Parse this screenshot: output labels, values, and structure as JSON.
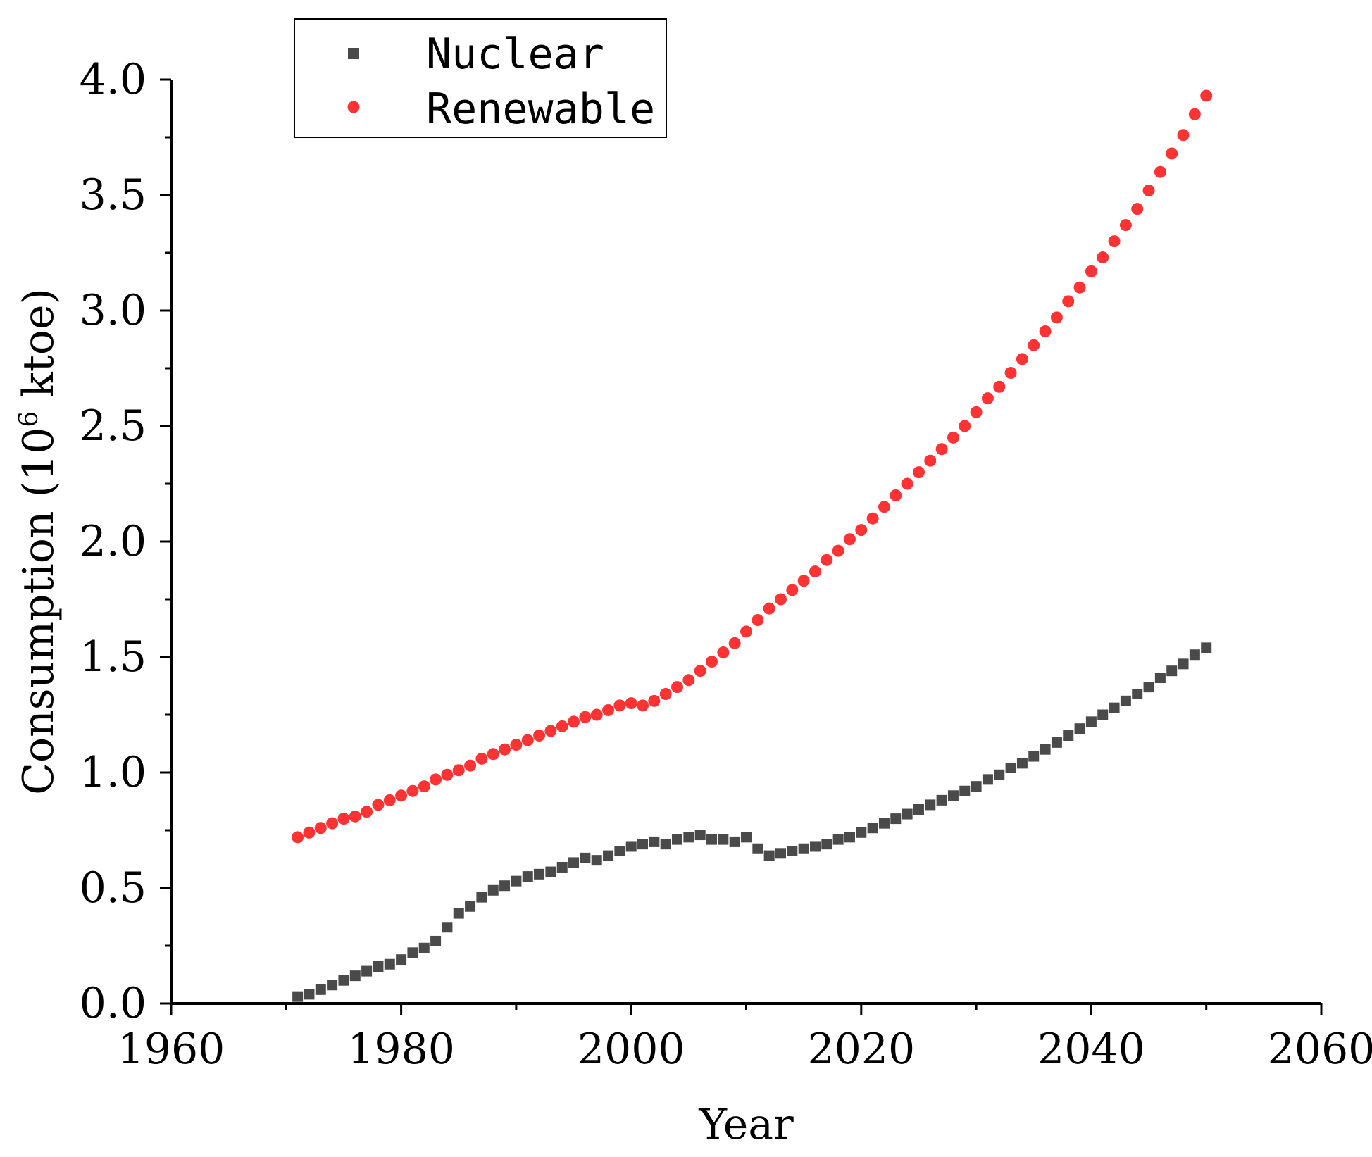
{
  "chart_data": {
    "type": "scatter",
    "title": "",
    "xlabel": "Year",
    "ylabel": {
      "prefix": "Consumption (10",
      "superscript": "6",
      "suffix": " ktoe)"
    },
    "xlim": [
      1960,
      2060
    ],
    "ylim": [
      0.0,
      4.0
    ],
    "xticks": [
      "1960",
      "1980",
      "2000",
      "2020",
      "2040",
      "2060"
    ],
    "yticks": [
      "0.0",
      "0.5",
      "1.0",
      "1.5",
      "2.0",
      "2.5",
      "3.0",
      "3.5",
      "4.0"
    ],
    "legend_position": "top-left",
    "x": [
      1971,
      1972,
      1973,
      1974,
      1975,
      1976,
      1977,
      1978,
      1979,
      1980,
      1981,
      1982,
      1983,
      1984,
      1985,
      1986,
      1987,
      1988,
      1989,
      1990,
      1991,
      1992,
      1993,
      1994,
      1995,
      1996,
      1997,
      1998,
      1999,
      2000,
      2001,
      2002,
      2003,
      2004,
      2005,
      2006,
      2007,
      2008,
      2009,
      2010,
      2011,
      2012,
      2013,
      2014,
      2015,
      2016,
      2017,
      2018,
      2019,
      2020,
      2021,
      2022,
      2023,
      2024,
      2025,
      2026,
      2027,
      2028,
      2029,
      2030,
      2031,
      2032,
      2033,
      2034,
      2035,
      2036,
      2037,
      2038,
      2039,
      2040,
      2041,
      2042,
      2043,
      2044,
      2045,
      2046,
      2047,
      2048,
      2049,
      2050
    ],
    "series": [
      {
        "name": "Nuclear",
        "marker": "square",
        "color": "#4a4a4a",
        "values": [
          0.03,
          0.04,
          0.06,
          0.08,
          0.1,
          0.12,
          0.14,
          0.16,
          0.17,
          0.19,
          0.22,
          0.24,
          0.27,
          0.33,
          0.39,
          0.42,
          0.46,
          0.49,
          0.51,
          0.53,
          0.55,
          0.56,
          0.57,
          0.59,
          0.61,
          0.63,
          0.62,
          0.64,
          0.66,
          0.68,
          0.69,
          0.7,
          0.69,
          0.71,
          0.72,
          0.73,
          0.71,
          0.71,
          0.7,
          0.72,
          0.67,
          0.64,
          0.65,
          0.66,
          0.67,
          0.68,
          0.69,
          0.71,
          0.72,
          0.74,
          0.76,
          0.78,
          0.8,
          0.82,
          0.84,
          0.86,
          0.88,
          0.9,
          0.92,
          0.94,
          0.97,
          0.99,
          1.02,
          1.04,
          1.07,
          1.1,
          1.13,
          1.16,
          1.19,
          1.22,
          1.25,
          1.28,
          1.31,
          1.34,
          1.37,
          1.41,
          1.44,
          1.47,
          1.51,
          1.54
        ]
      },
      {
        "name": "Renewable",
        "marker": "circle",
        "color": "#ff3333",
        "values": [
          0.72,
          0.74,
          0.76,
          0.78,
          0.8,
          0.81,
          0.83,
          0.86,
          0.88,
          0.9,
          0.92,
          0.94,
          0.97,
          0.99,
          1.01,
          1.03,
          1.06,
          1.08,
          1.1,
          1.12,
          1.14,
          1.16,
          1.18,
          1.2,
          1.22,
          1.24,
          1.25,
          1.27,
          1.29,
          1.3,
          1.29,
          1.31,
          1.34,
          1.37,
          1.4,
          1.44,
          1.48,
          1.52,
          1.56,
          1.61,
          1.66,
          1.71,
          1.75,
          1.79,
          1.83,
          1.87,
          1.92,
          1.96,
          2.01,
          2.05,
          2.1,
          2.15,
          2.2,
          2.25,
          2.3,
          2.35,
          2.4,
          2.45,
          2.5,
          2.56,
          2.62,
          2.67,
          2.73,
          2.79,
          2.85,
          2.91,
          2.97,
          3.04,
          3.1,
          3.17,
          3.23,
          3.3,
          3.37,
          3.44,
          3.52,
          3.6,
          3.68,
          3.76,
          3.85,
          3.93
        ]
      }
    ]
  }
}
